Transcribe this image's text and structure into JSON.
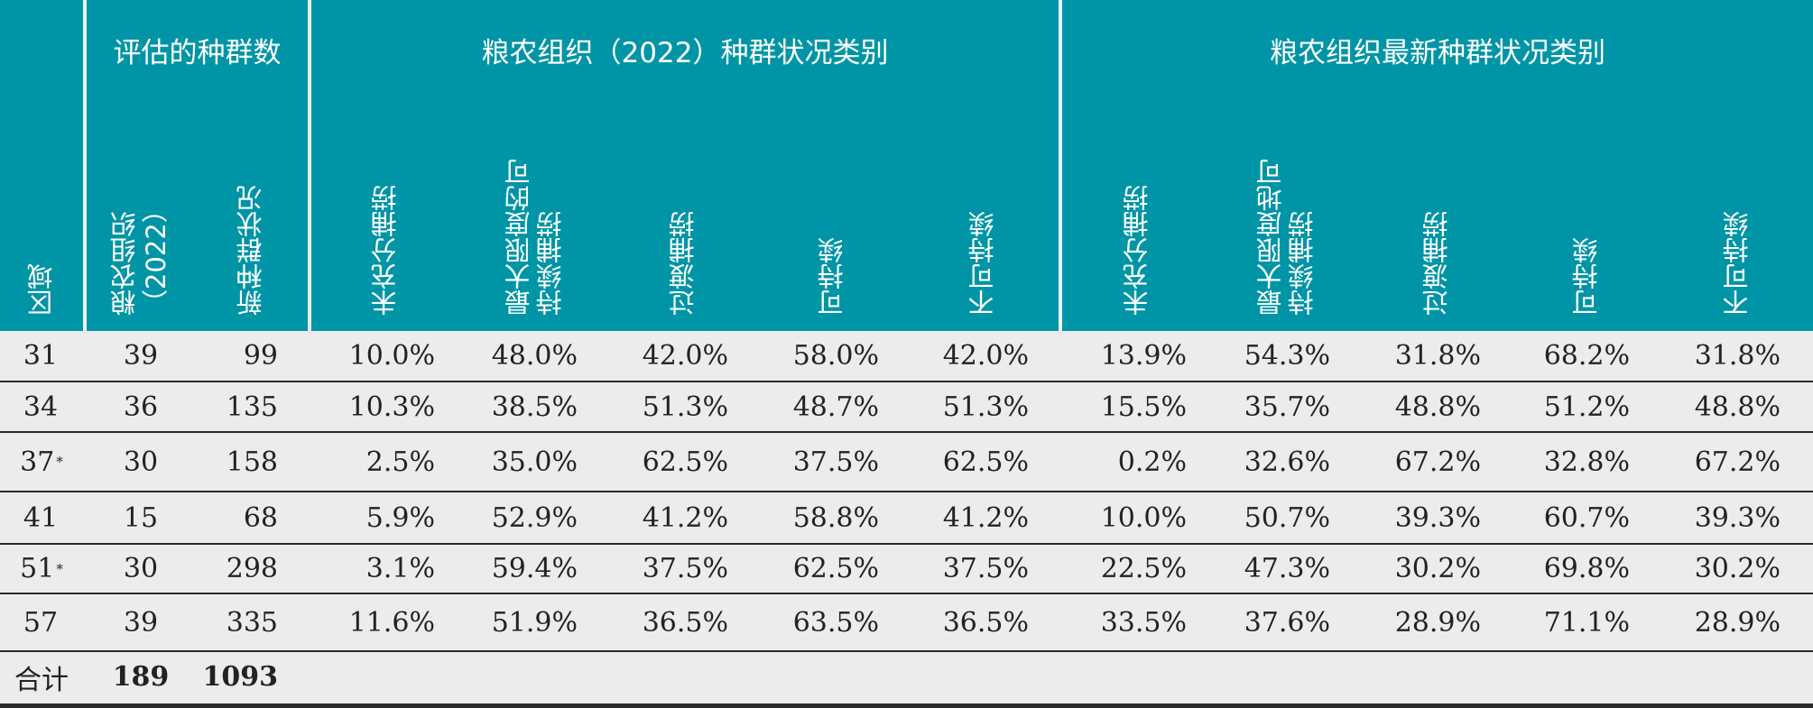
{
  "header": {
    "group_assessed": "评估的种群数",
    "group_fao2022": "粮农组织（2022）种群状况类别",
    "group_latest": "粮农组织最新种群状况类别",
    "col_region": "区域",
    "col_fao2022_count": "粮农组织（2022）",
    "col_new_count": "新种群状况",
    "cat_underfished": "未充分捕捞",
    "cat_maxsustain_a": "最大限度的可持续捕捞",
    "cat_overfished": "过渡捕捞",
    "cat_sustainable": "可持续",
    "cat_unsustainable": "不可持续",
    "cat_maxsustain_b": "最大限度地可持续捕捞"
  },
  "rows": [
    {
      "region": "31",
      "sup": "",
      "fao_count": "39",
      "new_count": "99",
      "a": [
        "10.0%",
        "48.0%",
        "42.0%",
        "58.0%",
        "42.0%"
      ],
      "b": [
        "13.9%",
        "54.3%",
        "31.8%",
        "68.2%",
        "31.8%"
      ]
    },
    {
      "region": "34",
      "sup": "",
      "fao_count": "36",
      "new_count": "135",
      "a": [
        "10.3%",
        "38.5%",
        "51.3%",
        "48.7%",
        "51.3%"
      ],
      "b": [
        "15.5%",
        "35.7%",
        "48.8%",
        "51.2%",
        "48.8%"
      ]
    },
    {
      "region": "37",
      "sup": "*",
      "fao_count": "30",
      "new_count": "158",
      "a": [
        "2.5%",
        "35.0%",
        "62.5%",
        "37.5%",
        "62.5%"
      ],
      "b": [
        "0.2%",
        "32.6%",
        "67.2%",
        "32.8%",
        "67.2%"
      ]
    },
    {
      "region": "41",
      "sup": "",
      "fao_count": "15",
      "new_count": "68",
      "a": [
        "5.9%",
        "52.9%",
        "41.2%",
        "58.8%",
        "41.2%"
      ],
      "b": [
        "10.0%",
        "50.7%",
        "39.3%",
        "60.7%",
        "39.3%"
      ]
    },
    {
      "region": "51",
      "sup": "*",
      "fao_count": "30",
      "new_count": "298",
      "a": [
        "3.1%",
        "59.4%",
        "37.5%",
        "62.5%",
        "37.5%"
      ],
      "b": [
        "22.5%",
        "47.3%",
        "30.2%",
        "69.8%",
        "30.2%"
      ]
    },
    {
      "region": "57",
      "sup": "",
      "fao_count": "39",
      "new_count": "335",
      "a": [
        "11.6%",
        "51.9%",
        "36.5%",
        "63.5%",
        "36.5%"
      ],
      "b": [
        "33.5%",
        "37.6%",
        "28.9%",
        "71.1%",
        "28.9%"
      ]
    }
  ],
  "total": {
    "label": "合计",
    "fao_count": "189",
    "new_count": "1093"
  }
}
